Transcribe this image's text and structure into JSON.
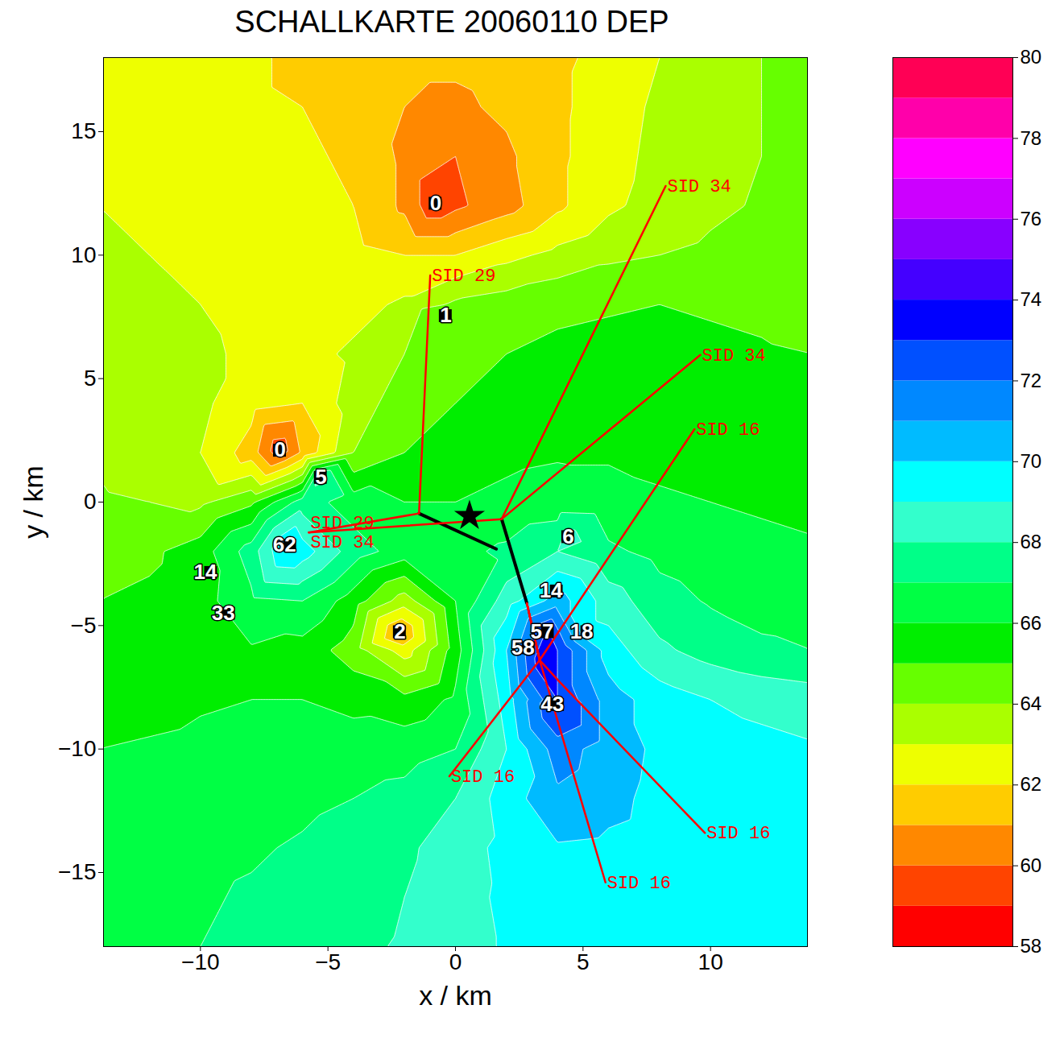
{
  "chart_data": {
    "type": "contour",
    "title": "SCHALLKARTE 20060110 DEP",
    "x_label": "x / km",
    "y_label": "y / km",
    "xlim": [
      -13.8,
      13.8
    ],
    "ylim": [
      -18,
      18
    ],
    "xticks": [
      -10,
      -5,
      0,
      5,
      10
    ],
    "yticks": [
      -15,
      -10,
      -5,
      0,
      5,
      10,
      15
    ],
    "grid_x": [
      -14,
      -12,
      -10,
      -8,
      -6,
      -4,
      -2,
      0,
      2,
      4,
      6,
      8,
      10,
      12,
      14
    ],
    "grid_y": [
      18,
      16,
      14,
      12,
      10,
      8,
      6,
      4,
      2,
      0,
      -2,
      -4,
      -6,
      -8,
      -10,
      -12,
      -14,
      -16,
      -18
    ],
    "grid_values": [
      [
        62.6,
        62.5,
        62.3,
        62.2,
        61.7,
        61.4,
        61.2,
        61.2,
        61.4,
        61.8,
        62.3,
        63.0,
        63.5,
        64.0,
        64.3
      ],
      [
        62.7,
        62.6,
        62.4,
        62.2,
        62.0,
        61.6,
        61.0,
        60.8,
        61.2,
        61.8,
        62.5,
        63.2,
        63.6,
        64.0,
        64.3
      ],
      [
        62.9,
        62.8,
        62.6,
        62.4,
        62.2,
        61.8,
        60.8,
        60.0,
        60.8,
        61.8,
        62.6,
        63.3,
        63.7,
        64.0,
        64.3
      ],
      [
        63.0,
        62.9,
        62.8,
        62.6,
        62.4,
        62.0,
        60.8,
        59.8,
        60.6,
        61.8,
        62.8,
        63.4,
        63.8,
        64.1,
        64.3
      ],
      [
        63.1,
        63.0,
        62.9,
        62.7,
        62.5,
        62.3,
        62.0,
        62.0,
        62.7,
        63.3,
        63.8,
        64.0,
        64.2,
        64.3,
        64.4
      ],
      [
        63.5,
        63.3,
        63.0,
        62.7,
        62.5,
        62.6,
        63.2,
        64.2,
        64.5,
        64.8,
        64.9,
        65.0,
        64.9,
        64.8,
        64.6
      ],
      [
        63.7,
        63.5,
        63.2,
        62.8,
        62.6,
        63.2,
        64.0,
        64.6,
        65.0,
        65.2,
        65.3,
        65.3,
        65.2,
        65.1,
        65.0
      ],
      [
        63.8,
        63.6,
        63.2,
        62.4,
        62.0,
        63.5,
        64.5,
        65.0,
        65.4,
        65.6,
        65.6,
        65.5,
        65.4,
        65.3,
        65.2
      ],
      [
        63.9,
        63.6,
        63.0,
        61.5,
        61.2,
        64.0,
        65.0,
        65.5,
        65.8,
        65.9,
        65.9,
        65.8,
        65.7,
        65.6,
        65.5
      ],
      [
        64.1,
        64.0,
        63.8,
        64.8,
        67.5,
        66.5,
        66.0,
        66.0,
        66.2,
        66.4,
        66.3,
        66.1,
        66.0,
        65.9,
        65.8
      ],
      [
        64.6,
        64.8,
        65.5,
        67.5,
        69.5,
        67.5,
        66.5,
        66.7,
        67.2,
        68.0,
        67.2,
        66.7,
        66.4,
        66.2,
        66.1
      ],
      [
        65.0,
        65.2,
        65.6,
        66.8,
        67.0,
        65.5,
        63.5,
        66.0,
        68.5,
        70.5,
        68.5,
        67.4,
        66.9,
        66.6,
        66.5
      ],
      [
        65.3,
        65.4,
        65.6,
        65.9,
        65.6,
        64.5,
        62.5,
        65.5,
        70.0,
        73.0,
        69.5,
        68.2,
        67.6,
        67.2,
        67.0
      ],
      [
        65.6,
        65.7,
        65.9,
        66.0,
        66.0,
        65.7,
        65.3,
        66.2,
        69.5,
        73.0,
        70.5,
        69.5,
        69.0,
        68.7,
        68.5
      ],
      [
        66.0,
        66.1,
        66.2,
        66.3,
        66.4,
        66.5,
        66.6,
        67.0,
        69.0,
        71.5,
        70.5,
        69.8,
        69.5,
        69.3,
        69.1
      ],
      [
        66.3,
        66.4,
        66.5,
        66.6,
        66.8,
        67.0,
        67.3,
        68.0,
        69.5,
        70.8,
        70.3,
        69.7,
        69.4,
        69.3,
        69.2
      ],
      [
        66.5,
        66.6,
        66.8,
        66.9,
        67.1,
        67.4,
        67.8,
        68.5,
        69.3,
        69.9,
        69.8,
        69.6,
        69.4,
        69.3,
        69.2
      ],
      [
        66.6,
        66.8,
        66.9,
        67.1,
        67.3,
        67.6,
        68.0,
        68.6,
        69.2,
        69.5,
        69.5,
        69.4,
        69.3,
        69.3,
        69.2
      ],
      [
        66.7,
        66.9,
        67.0,
        67.2,
        67.5,
        67.8,
        68.1,
        68.6,
        69.1,
        69.3,
        69.4,
        69.3,
        69.3,
        69.2,
        69.2
      ]
    ],
    "point_values": [
      {
        "x": -0.8,
        "y": 12.1,
        "value": 59.2
      },
      {
        "x": -6.9,
        "y": 2.1,
        "value": 59.3
      },
      {
        "x": -2.2,
        "y": -5.3,
        "value": 60.8
      },
      {
        "x": -6.5,
        "y": -1.8,
        "value": 70.3
      },
      {
        "x": 3.4,
        "y": -6.4,
        "value": 73.8
      },
      {
        "x": 4.0,
        "y": -8.2,
        "value": 73.3
      },
      {
        "x": 3.6,
        "y": -5.3,
        "value": 73.2
      },
      {
        "x": -0.4,
        "y": 7.6,
        "value": 65.1
      },
      {
        "x": -5.3,
        "y": 1.0,
        "value": 68.3
      },
      {
        "x": 4.4,
        "y": -1.4,
        "value": 68.4
      },
      {
        "x": 5.2,
        "y": -5.3,
        "value": 69.3
      }
    ],
    "colorbar": {
      "range": [
        58,
        80
      ],
      "ticks": [
        58,
        60,
        62,
        64,
        66,
        68,
        70,
        72,
        74,
        76,
        78,
        80
      ],
      "colors": [
        "#ff0000",
        "#ff4400",
        "#ff8800",
        "#ffcc00",
        "#eeff00",
        "#aaff00",
        "#66ff00",
        "#00ee00",
        "#00ff44",
        "#00ff88",
        "#33ffcc",
        "#00ffff",
        "#00bbff",
        "#0088ff",
        "#0050ff",
        "#0000ff",
        "#4400ff",
        "#8800ff",
        "#cc00ff",
        "#ff00ff",
        "#ff00aa",
        "#ff0055"
      ]
    },
    "sites": {
      "marker": "square",
      "color": "#000000",
      "points": [
        {
          "label": "0",
          "x": -0.8,
          "y": 12.1
        },
        {
          "label": "1",
          "x": -0.4,
          "y": 7.55
        },
        {
          "label": "0",
          "x": -6.9,
          "y": 2.1
        },
        {
          "label": "5",
          "x": -5.3,
          "y": 1.0
        },
        {
          "label": "62",
          "x": -6.5,
          "y": -1.75
        },
        {
          "label": "14",
          "x": -9.6,
          "y": -2.85
        },
        {
          "label": "33",
          "x": -8.9,
          "y": -4.5
        },
        {
          "label": "2",
          "x": -2.2,
          "y": -5.25
        },
        {
          "label": "6",
          "x": 4.4,
          "y": -1.4
        },
        {
          "label": "14",
          "x": 3.95,
          "y": -3.6
        },
        {
          "label": "57",
          "x": 3.6,
          "y": -5.25
        },
        {
          "label": "18",
          "x": 5.15,
          "y": -5.25
        },
        {
          "label": "58",
          "x": 2.85,
          "y": -5.9
        },
        {
          "label": "43",
          "x": 4.0,
          "y": -8.2
        }
      ]
    },
    "reference": {
      "marker": "star",
      "color": "#000000",
      "x": 0.55,
      "y": -0.56
    },
    "tracks": {
      "color": "#000000",
      "lines": [
        [
          [
            -1.43,
            -0.46
          ],
          [
            1.6,
            -1.9
          ]
        ],
        [
          [
            1.81,
            -0.69
          ],
          [
            2.8,
            -4.1
          ]
        ]
      ]
    },
    "routes": {
      "color": "#ff0000",
      "series": [
        {
          "name": "SID 29",
          "points": [
            [
              -1.43,
              -0.46
            ],
            [
              -0.99,
              9.18
            ]
          ]
        },
        {
          "name": "SID 29",
          "points": [
            [
              -1.43,
              -0.46
            ],
            [
              -5.75,
              -1.23
            ]
          ]
        },
        {
          "name": "SID 34",
          "points": [
            [
              1.81,
              -0.69
            ],
            [
              8.24,
              12.8
            ]
          ]
        },
        {
          "name": "SID 34",
          "points": [
            [
              1.81,
              -0.69
            ],
            [
              9.6,
              5.96
            ]
          ]
        },
        {
          "name": "SID 34",
          "points": [
            [
              1.81,
              -0.69
            ],
            [
              -5.75,
              -1.23
            ]
          ]
        },
        {
          "name": "SID 16",
          "points": [
            [
              2.8,
              -4.1
            ],
            [
              3.3,
              -6.4
            ],
            [
              -0.24,
              -11.1
            ]
          ]
        },
        {
          "name": "SID 16",
          "points": [
            [
              2.8,
              -4.1
            ],
            [
              3.3,
              -6.4
            ],
            [
              9.37,
              2.95
            ]
          ]
        },
        {
          "name": "SID 16",
          "points": [
            [
              2.8,
              -4.1
            ],
            [
              3.3,
              -6.4
            ],
            [
              4.1,
              -7.3
            ],
            [
              9.78,
              -13.4
            ]
          ]
        },
        {
          "name": "SID 16",
          "points": [
            [
              2.8,
              -4.1
            ],
            [
              3.3,
              -6.4
            ],
            [
              5.88,
              -15.4
            ]
          ]
        }
      ]
    }
  }
}
